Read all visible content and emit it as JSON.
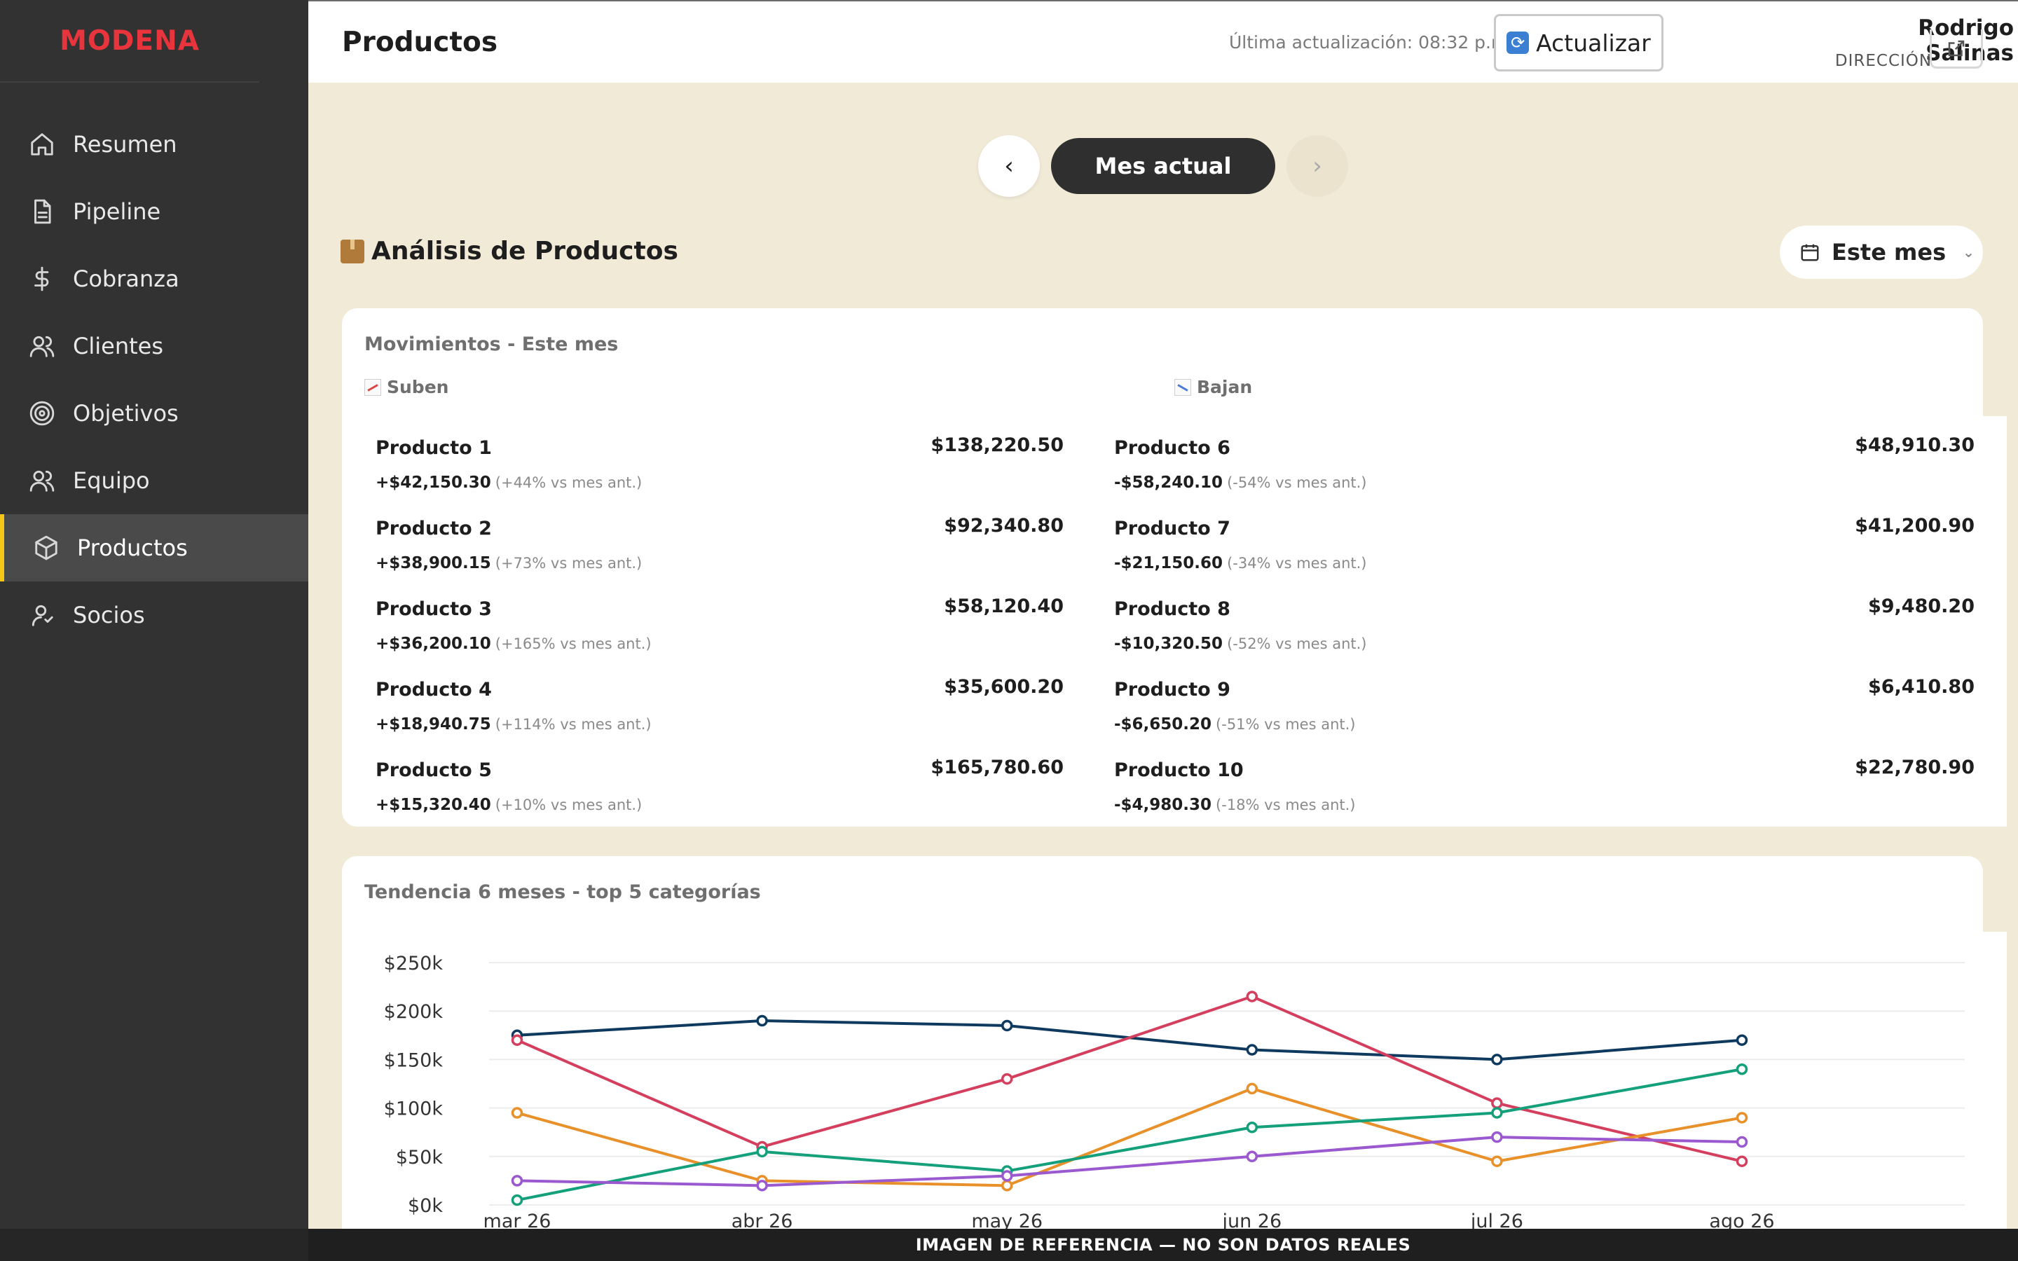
{
  "app": {
    "brand": "MODENA"
  },
  "sidebar": {
    "items": [
      {
        "label": "Resumen",
        "icon": "home-icon"
      },
      {
        "label": "Pipeline",
        "icon": "document-icon"
      },
      {
        "label": "Cobranza",
        "icon": "dollar-icon"
      },
      {
        "label": "Clientes",
        "icon": "users-icon"
      },
      {
        "label": "Objetivos",
        "icon": "target-icon"
      },
      {
        "label": "Equipo",
        "icon": "team-icon"
      },
      {
        "label": "Productos",
        "icon": "box-icon",
        "active": true
      },
      {
        "label": "Socios",
        "icon": "partner-icon"
      }
    ]
  },
  "header": {
    "title": "Productos",
    "last_update": "Última actualización: 08:32 p.m.",
    "refresh_label": "Actualizar",
    "user_name": "Rodrigo Salinas",
    "user_role": "DIRECCIÓN"
  },
  "month_nav": {
    "prev": "‹",
    "current": "Mes actual",
    "next": "›"
  },
  "section": {
    "title": "Análisis de Productos",
    "period": "Este mes"
  },
  "movements": {
    "title": "Movimientos - Este mes",
    "up_label": "Suben",
    "down_label": "Bajan",
    "up": [
      {
        "name": "Producto 1",
        "total": "$138,220.50",
        "delta": "+$42,150.30",
        "pct": "(+44% vs mes ant.)"
      },
      {
        "name": "Producto 2",
        "total": "$92,340.80",
        "delta": "+$38,900.15",
        "pct": "(+73% vs mes ant.)"
      },
      {
        "name": "Producto 3",
        "total": "$58,120.40",
        "delta": "+$36,200.10",
        "pct": "(+165% vs mes ant.)"
      },
      {
        "name": "Producto 4",
        "total": "$35,600.20",
        "delta": "+$18,940.75",
        "pct": "(+114% vs mes ant.)"
      },
      {
        "name": "Producto 5",
        "total": "$165,780.60",
        "delta": "+$15,320.40",
        "pct": "(+10% vs mes ant.)"
      }
    ],
    "down": [
      {
        "name": "Producto 6",
        "total": "$48,910.30",
        "delta": "-$58,240.10",
        "pct": "(-54% vs mes ant.)"
      },
      {
        "name": "Producto 7",
        "total": "$41,200.90",
        "delta": "-$21,150.60",
        "pct": "(-34% vs mes ant.)"
      },
      {
        "name": "Producto 8",
        "total": "$9,480.20",
        "delta": "-$10,320.50",
        "pct": "(-52% vs mes ant.)"
      },
      {
        "name": "Producto 9",
        "total": "$6,410.80",
        "delta": "-$6,650.20",
        "pct": "(-51% vs mes ant.)"
      },
      {
        "name": "Producto 10",
        "total": "$22,780.90",
        "delta": "-$4,980.30",
        "pct": "(-18% vs mes ant.)"
      }
    ]
  },
  "trend": {
    "title": "Tendencia 6 meses - top 5 categorías"
  },
  "chart_data": {
    "type": "line",
    "title": "Tendencia 6 meses - top 5 categorías",
    "xlabel": "",
    "ylabel": "",
    "categories": [
      "mar 26",
      "abr 26",
      "may 26",
      "jun 26",
      "jul 26",
      "ago 26"
    ],
    "y_ticks": [
      "$0k",
      "$50k",
      "$100k",
      "$150k",
      "$200k",
      "$250k"
    ],
    "ylim": [
      0,
      250000
    ],
    "grid": true,
    "series": [
      {
        "color": "#0f3a5f",
        "values": [
          175000,
          190000,
          185000,
          160000,
          150000,
          170000
        ]
      },
      {
        "color": "#d43f5e",
        "values": [
          170000,
          60000,
          130000,
          215000,
          105000,
          45000
        ]
      },
      {
        "color": "#e8902a",
        "values": [
          95000,
          25000,
          20000,
          120000,
          45000,
          90000
        ]
      },
      {
        "color": "#14a07a",
        "values": [
          5000,
          55000,
          35000,
          80000,
          95000,
          140000
        ]
      },
      {
        "color": "#9b59d0",
        "values": [
          25000,
          20000,
          30000,
          50000,
          70000,
          65000
        ]
      }
    ]
  },
  "footer": {
    "banner": "IMAGEN DE REFERENCIA — NO SON DATOS REALES"
  }
}
